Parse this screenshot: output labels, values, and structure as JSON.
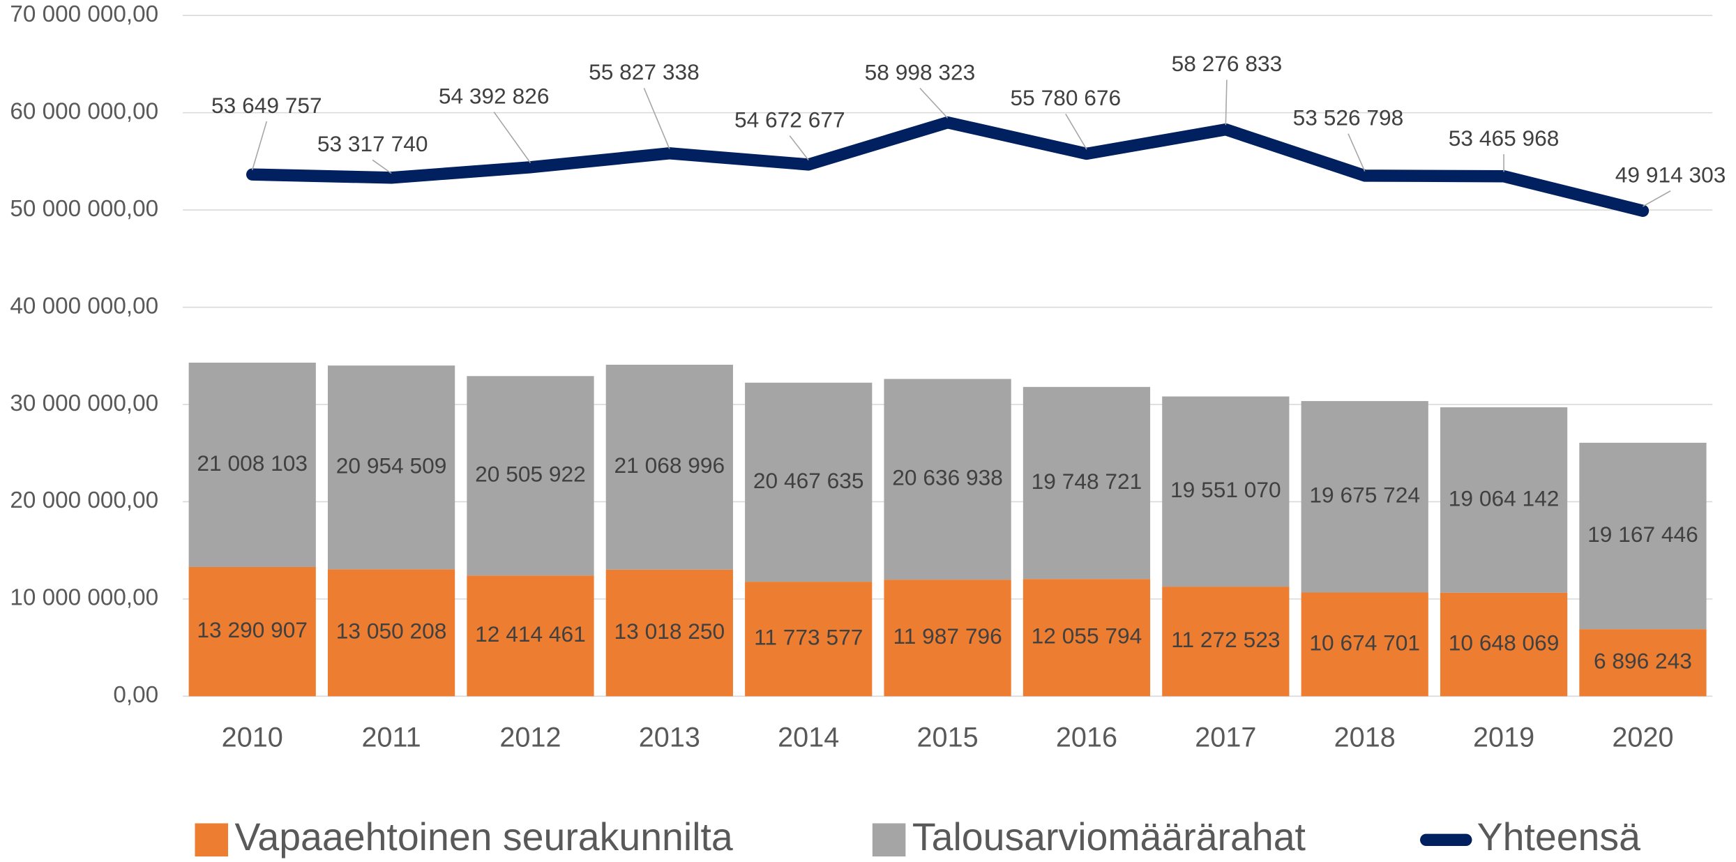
{
  "chart_data": {
    "type": "stacked_bar_line",
    "categories": [
      "2010",
      "2011",
      "2012",
      "2013",
      "2014",
      "2015",
      "2016",
      "2017",
      "2018",
      "2019",
      "2020"
    ],
    "series": [
      {
        "name": "Vapaaehtoinen seurakunnilta",
        "color": "#ed7d31",
        "kind": "bar",
        "values": [
          13290907,
          13050208,
          12414461,
          13018250,
          11773577,
          11987796,
          12055794,
          11272523,
          10674701,
          10648069,
          6896243
        ],
        "value_labels": [
          "13 290 907",
          "13 050 208",
          "12 414 461",
          "13 018 250",
          "11 773 577",
          "11 987 796",
          "12 055 794",
          "11 272 523",
          "10 674 701",
          "10 648 069",
          "6 896 243"
        ]
      },
      {
        "name": "Talousarviomäärärahat",
        "color": "#a5a5a5",
        "kind": "bar",
        "values": [
          21008103,
          20954509,
          20505922,
          21068996,
          20467635,
          20636938,
          19748721,
          19551070,
          19675724,
          19064142,
          19167446
        ],
        "value_labels": [
          "21 008 103",
          "20 954 509",
          "20 505 922",
          "21 068 996",
          "20 467 635",
          "20 636 938",
          "19 748 721",
          "19 551 070",
          "19 675 724",
          "19 064 142",
          "19 167 446"
        ]
      },
      {
        "name": "Yhteensä",
        "color": "#002060",
        "kind": "line",
        "values": [
          53649757,
          53317740,
          54392826,
          55827338,
          54672677,
          58998323,
          55780676,
          58276833,
          53526798,
          53465968,
          49914303
        ],
        "value_labels": [
          "53 649 757",
          "53 317 740",
          "54 392 826",
          "55 827 338",
          "54 672 677",
          "58 998 323",
          "55 780 676",
          "58 276 833",
          "53 526 798",
          "53 465 968",
          "49 914 303"
        ]
      }
    ],
    "ylim": [
      0,
      70000000
    ],
    "yticks": [
      {
        "value": 0,
        "label": "0,00"
      },
      {
        "value": 10000000,
        "label": "10 000 000,00"
      },
      {
        "value": 20000000,
        "label": "20 000 000,00"
      },
      {
        "value": 30000000,
        "label": "30 000 000,00"
      },
      {
        "value": 40000000,
        "label": "40 000 000,00"
      },
      {
        "value": 50000000,
        "label": "50 000 000,00"
      },
      {
        "value": 60000000,
        "label": "60 000 000,00"
      },
      {
        "value": 70000000,
        "label": "70 000 000,00"
      }
    ],
    "grid": true,
    "legend": "bottom"
  }
}
